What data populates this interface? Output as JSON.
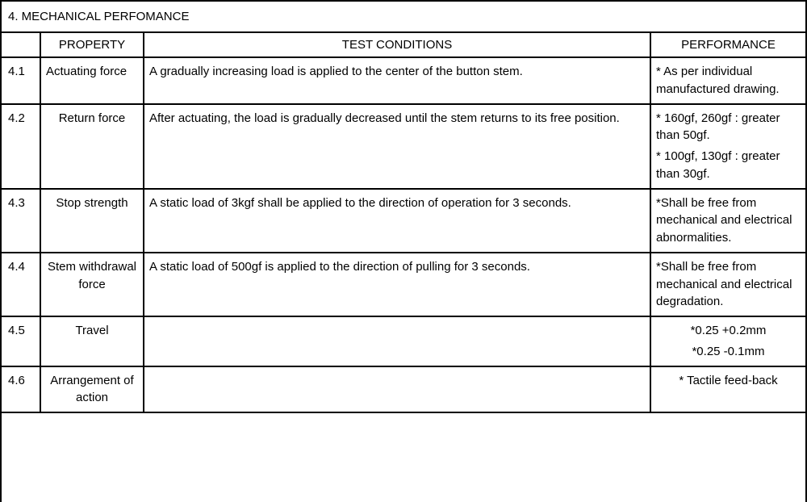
{
  "section": {
    "title": "4. MECHANICAL PERFOMANCE"
  },
  "table": {
    "columns": {
      "num": "",
      "property": "PROPERTY",
      "conditions": "TEST CONDITIONS",
      "performance": "PERFORMANCE"
    },
    "rows": [
      {
        "num": "4.1",
        "property": "Actuating force",
        "property_align": "left",
        "conditions": "A gradually increasing load is applied to the center of the button stem.",
        "performance": [
          "* As per individual manufactured drawing."
        ],
        "perf_align": "left"
      },
      {
        "num": "4.2",
        "property": "Return force",
        "property_align": "center",
        "conditions": "After actuating, the load is gradually decreased until the stem returns to its free position.",
        "performance": [
          "* 160gf, 260gf : greater than 50gf.",
          "* 100gf, 130gf : greater than 30gf."
        ],
        "perf_align": "left"
      },
      {
        "num": "4.3",
        "property": "Stop strength",
        "property_align": "center",
        "conditions": "A static load of 3kgf shall be applied to the direction of operation for 3 seconds.",
        "performance": [
          "*Shall be free from mechanical and electrical abnormalities."
        ],
        "perf_align": "left"
      },
      {
        "num": "4.4",
        "property": "Stem withdrawal force",
        "property_align": "center",
        "conditions": "A static load of 500gf is applied to the direction of pulling for 3 seconds.",
        "performance": [
          "*Shall be free from mechanical and electrical degradation."
        ],
        "perf_align": "left"
      },
      {
        "num": "4.5",
        "property": "Travel",
        "property_align": "center",
        "conditions": "",
        "performance": [
          "*0.25 +0.2mm",
          "*0.25 -0.1mm"
        ],
        "perf_align": "center"
      },
      {
        "num": "4.6",
        "property": "Arrangement of action",
        "property_align": "center",
        "conditions": "",
        "performance": [
          "* Tactile feed-back"
        ],
        "perf_align": "center"
      }
    ]
  },
  "style": {
    "border_color": "#000000",
    "background_color": "#ffffff",
    "text_color": "#000000",
    "font_family": "Arial",
    "font_size_pt": 11
  }
}
